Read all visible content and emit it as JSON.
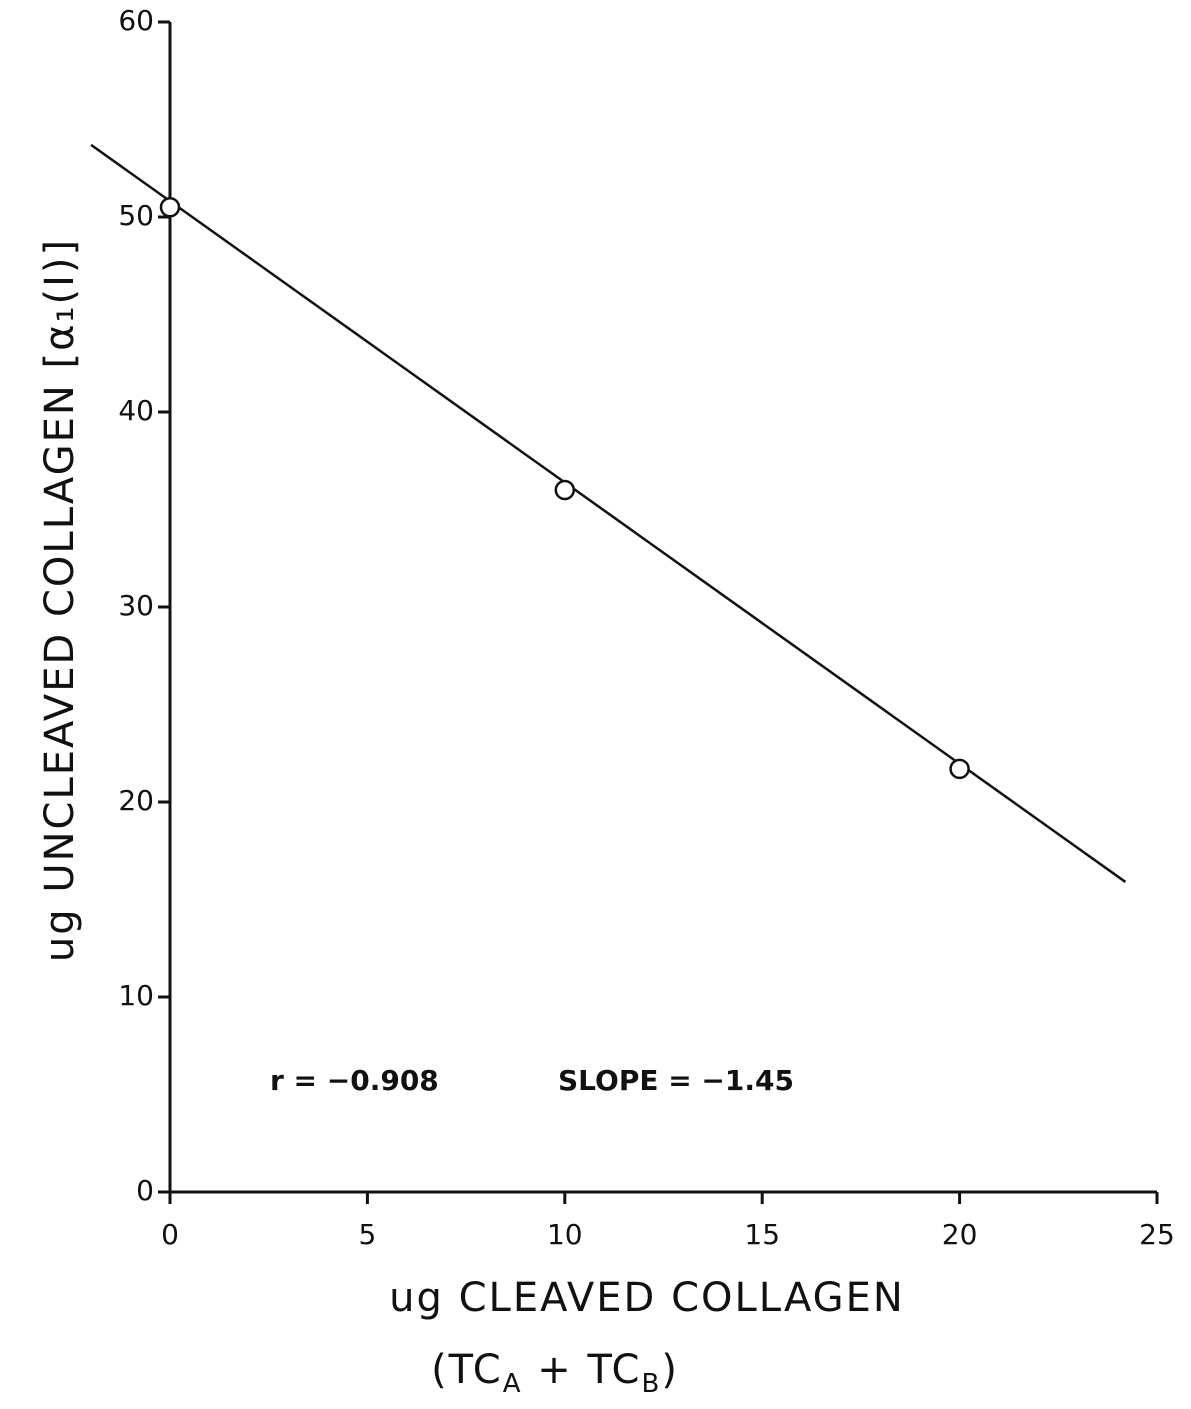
{
  "chart_data": {
    "type": "scatter",
    "x_label": "ug CLEAVED COLLAGEN",
    "x_label_parts": [
      "(TC",
      "A",
      " + TC",
      "B",
      ")"
    ],
    "y_label": "ug UNCLEAVED COLLAGEN [α₁(I)]",
    "annotations": [
      "r = −0.908",
      "SLOPE = −1.45"
    ],
    "series": [
      {
        "color": "#111111",
        "x": [
          0,
          10,
          20
        ],
        "values": [
          50.5,
          36,
          21.7
        ]
      }
    ],
    "fit_line": {
      "color": "#111111",
      "x": [
        -2,
        24.2
      ],
      "values": [
        53.7,
        15.9
      ]
    },
    "xlim": [
      0,
      25
    ],
    "ylim": [
      0,
      60
    ],
    "xticks": [
      0,
      5,
      10,
      15,
      20,
      25
    ],
    "yticks": [
      0,
      10,
      20,
      30,
      40,
      50,
      60
    ],
    "grid": false
  }
}
